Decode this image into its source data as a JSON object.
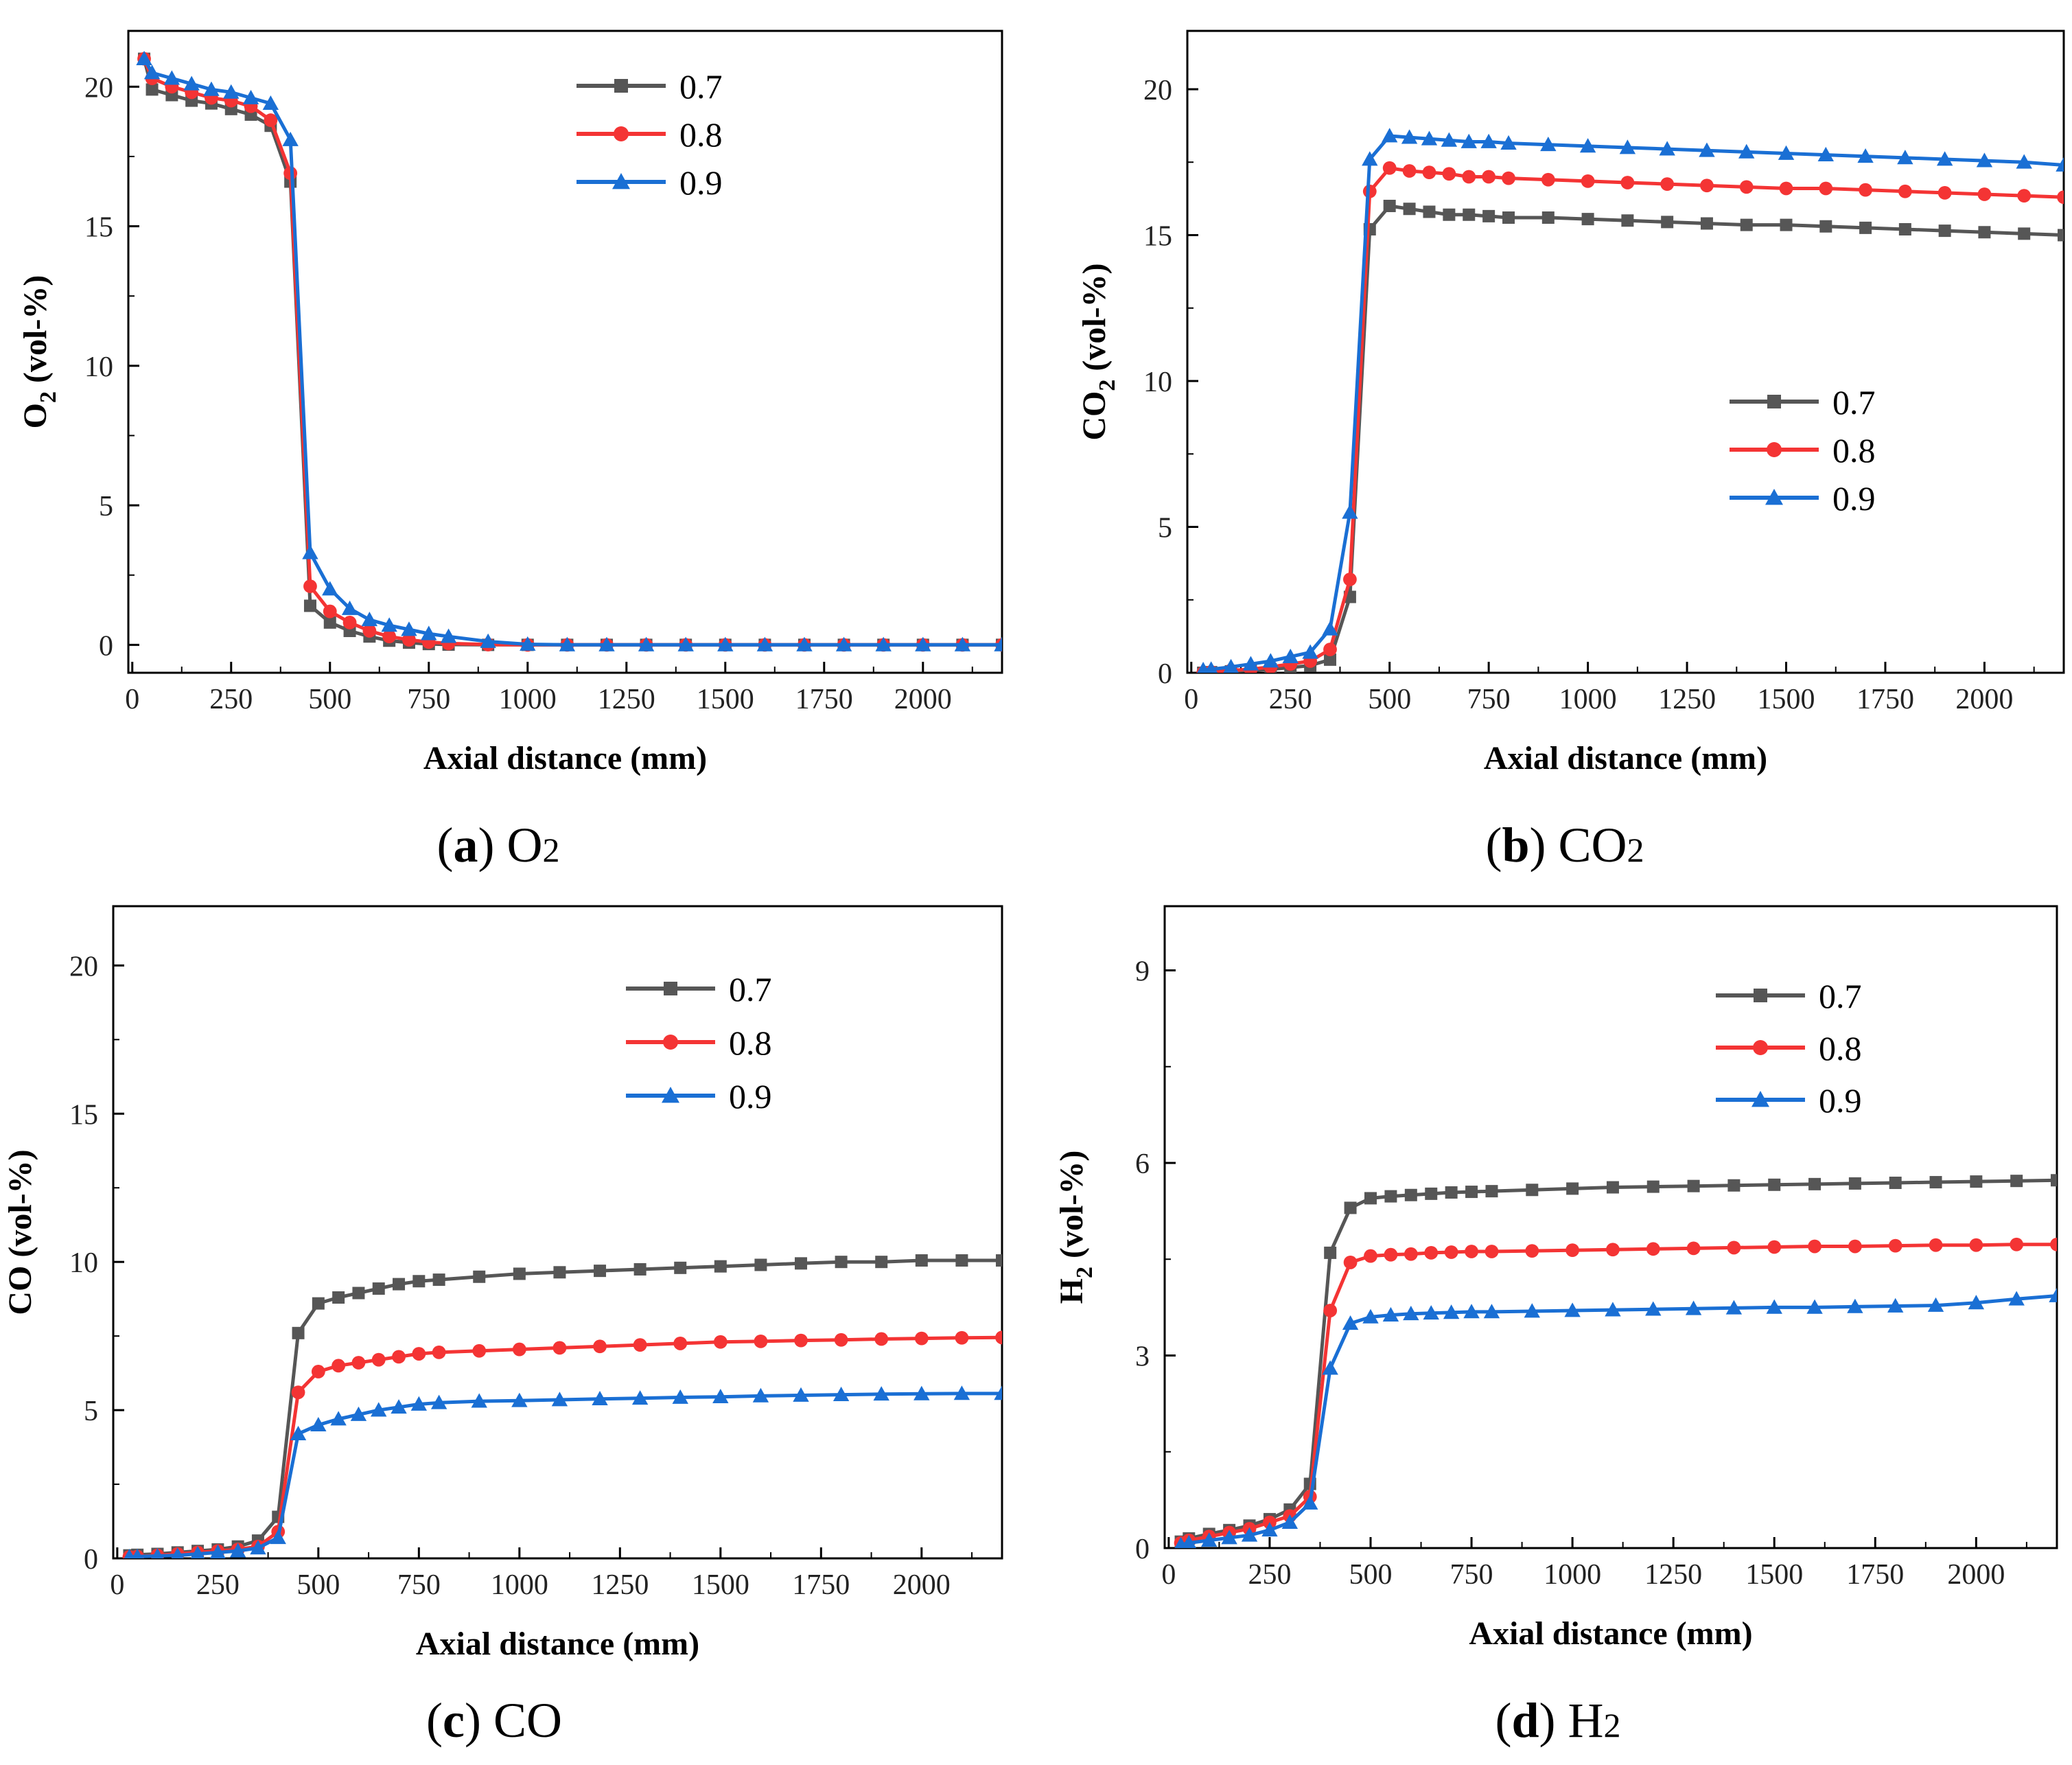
{
  "figure_title": "",
  "colors": {
    "s07": "#565656",
    "s08": "#f43434",
    "s09": "#1a6fd4",
    "axis": "#000000"
  },
  "chart_data": [
    {
      "id": "a",
      "type": "line",
      "caption": {
        "letter": "a",
        "open": "(",
        "close": ")",
        "text": "O",
        "sub": "2"
      },
      "xlabel": "Axial distance (mm)",
      "ylabel": {
        "main": "O",
        "sub": "2",
        "rest": " (vol-%)"
      },
      "xlim": [
        -10,
        2200
      ],
      "ylim": [
        -1,
        22
      ],
      "xticks": [
        0,
        250,
        500,
        750,
        1000,
        1250,
        1500,
        1750,
        2000
      ],
      "yticks": [
        0,
        5,
        10,
        15,
        20
      ],
      "legend": {
        "position": "top-right"
      },
      "series": [
        {
          "name": "0.7",
          "marker": "square",
          "color": "#565656",
          "x": [
            30,
            50,
            100,
            150,
            200,
            250,
            300,
            350,
            400,
            450,
            500,
            550,
            600,
            650,
            700,
            750,
            800,
            900,
            1000,
            1100,
            1200,
            1300,
            1400,
            1500,
            1600,
            1700,
            1800,
            1900,
            2000,
            2100,
            2200
          ],
          "y": [
            21.0,
            19.9,
            19.7,
            19.5,
            19.4,
            19.2,
            19.0,
            18.6,
            16.6,
            1.4,
            0.8,
            0.5,
            0.3,
            0.15,
            0.08,
            0.03,
            0.01,
            0,
            0,
            0,
            0,
            0,
            0,
            0,
            0,
            0,
            0,
            0,
            0,
            0,
            0
          ]
        },
        {
          "name": "0.8",
          "marker": "circle",
          "color": "#f43434",
          "x": [
            30,
            50,
            100,
            150,
            200,
            250,
            300,
            350,
            400,
            450,
            500,
            550,
            600,
            650,
            700,
            750,
            800,
            900,
            1000,
            1100,
            1200,
            1300,
            1400,
            1500,
            1600,
            1700,
            1800,
            1900,
            2000,
            2100,
            2200
          ],
          "y": [
            21.0,
            20.3,
            20.0,
            19.8,
            19.6,
            19.5,
            19.3,
            18.8,
            16.9,
            2.1,
            1.2,
            0.8,
            0.5,
            0.3,
            0.18,
            0.1,
            0.05,
            0.01,
            0,
            0,
            0,
            0,
            0,
            0,
            0,
            0,
            0,
            0,
            0,
            0,
            0
          ]
        },
        {
          "name": "0.9",
          "marker": "triangle",
          "color": "#1a6fd4",
          "x": [
            30,
            50,
            100,
            150,
            200,
            250,
            300,
            350,
            400,
            450,
            500,
            550,
            600,
            650,
            700,
            750,
            800,
            900,
            1000,
            1100,
            1200,
            1300,
            1400,
            1500,
            1600,
            1700,
            1800,
            1900,
            2000,
            2100,
            2200
          ],
          "y": [
            21.0,
            20.5,
            20.3,
            20.1,
            19.9,
            19.8,
            19.6,
            19.4,
            18.1,
            3.3,
            2.0,
            1.3,
            0.9,
            0.7,
            0.55,
            0.4,
            0.3,
            0.12,
            0.02,
            0,
            0,
            0,
            0,
            0,
            0,
            0,
            0,
            0,
            0,
            0,
            0
          ]
        }
      ]
    },
    {
      "id": "b",
      "type": "line",
      "caption": {
        "letter": "b",
        "open": "(",
        "close": ")",
        "text": "CO",
        "sub": "2"
      },
      "xlabel": "Axial distance (mm)",
      "ylabel": {
        "main": "CO",
        "sub": "2",
        "rest": " (vol-%)"
      },
      "xlim": [
        -10,
        2200
      ],
      "ylim": [
        0,
        22
      ],
      "xticks": [
        0,
        250,
        500,
        750,
        1000,
        1250,
        1500,
        1750,
        2000
      ],
      "yticks": [
        0,
        5,
        10,
        15,
        20
      ],
      "legend": {
        "position": "right"
      },
      "series": [
        {
          "name": "0.7",
          "marker": "square",
          "color": "#565656",
          "x": [
            30,
            50,
            100,
            150,
            200,
            250,
            300,
            350,
            400,
            450,
            500,
            550,
            600,
            650,
            700,
            750,
            800,
            900,
            1000,
            1100,
            1200,
            1300,
            1400,
            1500,
            1600,
            1700,
            1800,
            1900,
            2000,
            2100,
            2200
          ],
          "y": [
            0,
            0.02,
            0.05,
            0.08,
            0.12,
            0.18,
            0.25,
            0.45,
            2.6,
            15.2,
            16.0,
            15.9,
            15.8,
            15.7,
            15.7,
            15.65,
            15.6,
            15.6,
            15.55,
            15.5,
            15.45,
            15.4,
            15.35,
            15.35,
            15.3,
            15.25,
            15.2,
            15.15,
            15.1,
            15.05,
            15.0
          ]
        },
        {
          "name": "0.8",
          "marker": "circle",
          "color": "#f43434",
          "x": [
            30,
            50,
            100,
            150,
            200,
            250,
            300,
            350,
            400,
            450,
            500,
            550,
            600,
            650,
            700,
            750,
            800,
            900,
            1000,
            1100,
            1200,
            1300,
            1400,
            1500,
            1600,
            1700,
            1800,
            1900,
            2000,
            2100,
            2200
          ],
          "y": [
            0,
            0.03,
            0.08,
            0.12,
            0.2,
            0.3,
            0.4,
            0.8,
            3.2,
            16.5,
            17.3,
            17.2,
            17.15,
            17.1,
            17.0,
            17.0,
            16.95,
            16.9,
            16.85,
            16.8,
            16.75,
            16.7,
            16.65,
            16.6,
            16.6,
            16.55,
            16.5,
            16.45,
            16.4,
            16.35,
            16.3
          ]
        },
        {
          "name": "0.9",
          "marker": "triangle",
          "color": "#1a6fd4",
          "x": [
            30,
            50,
            100,
            150,
            200,
            250,
            300,
            350,
            400,
            450,
            500,
            550,
            600,
            650,
            700,
            750,
            800,
            900,
            1000,
            1100,
            1200,
            1300,
            1400,
            1500,
            1600,
            1700,
            1800,
            1900,
            2000,
            2100,
            2200
          ],
          "y": [
            0.1,
            0.12,
            0.2,
            0.3,
            0.4,
            0.55,
            0.7,
            1.5,
            5.5,
            17.6,
            18.4,
            18.35,
            18.3,
            18.25,
            18.2,
            18.2,
            18.15,
            18.1,
            18.05,
            18.0,
            17.95,
            17.9,
            17.85,
            17.8,
            17.75,
            17.7,
            17.65,
            17.6,
            17.55,
            17.5,
            17.4
          ]
        }
      ]
    },
    {
      "id": "c",
      "type": "line",
      "caption": {
        "letter": "c",
        "open": "(",
        "close": ")",
        "text": "CO",
        "sub": ""
      },
      "xlabel": "Axial distance (mm)",
      "ylabel": {
        "main": "CO",
        "sub": "",
        "rest": " (vol-%)"
      },
      "xlim": [
        -10,
        2200
      ],
      "ylim": [
        0,
        22
      ],
      "xticks": [
        0,
        250,
        500,
        750,
        1000,
        1250,
        1500,
        1750,
        2000
      ],
      "yticks": [
        0,
        5,
        10,
        15,
        20
      ],
      "legend": {
        "position": "top-right"
      },
      "series": [
        {
          "name": "0.7",
          "marker": "square",
          "color": "#565656",
          "x": [
            30,
            50,
            100,
            150,
            200,
            250,
            300,
            350,
            400,
            450,
            500,
            550,
            600,
            650,
            700,
            750,
            800,
            900,
            1000,
            1100,
            1200,
            1300,
            1400,
            1500,
            1600,
            1700,
            1800,
            1900,
            2000,
            2100,
            2200
          ],
          "y": [
            0.1,
            0.12,
            0.15,
            0.2,
            0.25,
            0.3,
            0.4,
            0.6,
            1.4,
            7.6,
            8.6,
            8.8,
            8.95,
            9.1,
            9.25,
            9.35,
            9.4,
            9.5,
            9.6,
            9.65,
            9.7,
            9.75,
            9.8,
            9.85,
            9.9,
            9.95,
            10.0,
            10.0,
            10.05,
            10.05,
            10.05
          ]
        },
        {
          "name": "0.8",
          "marker": "circle",
          "color": "#f43434",
          "x": [
            30,
            50,
            100,
            150,
            200,
            250,
            300,
            350,
            400,
            450,
            500,
            550,
            600,
            650,
            700,
            750,
            800,
            900,
            1000,
            1100,
            1200,
            1300,
            1400,
            1500,
            1600,
            1700,
            1800,
            1900,
            2000,
            2100,
            2200
          ],
          "y": [
            0.05,
            0.06,
            0.1,
            0.15,
            0.2,
            0.25,
            0.3,
            0.4,
            0.9,
            5.6,
            6.3,
            6.5,
            6.6,
            6.7,
            6.8,
            6.9,
            6.95,
            7.0,
            7.05,
            7.1,
            7.15,
            7.2,
            7.25,
            7.3,
            7.32,
            7.35,
            7.37,
            7.4,
            7.42,
            7.44,
            7.45
          ]
        },
        {
          "name": "0.9",
          "marker": "triangle",
          "color": "#1a6fd4",
          "x": [
            30,
            50,
            100,
            150,
            200,
            250,
            300,
            350,
            400,
            450,
            500,
            550,
            600,
            650,
            700,
            750,
            800,
            900,
            1000,
            1100,
            1200,
            1300,
            1400,
            1500,
            1600,
            1700,
            1800,
            1900,
            2000,
            2100,
            2200
          ],
          "y": [
            0.05,
            0.06,
            0.08,
            0.1,
            0.15,
            0.2,
            0.25,
            0.35,
            0.7,
            4.2,
            4.5,
            4.7,
            4.85,
            5.0,
            5.1,
            5.2,
            5.25,
            5.3,
            5.32,
            5.35,
            5.38,
            5.4,
            5.43,
            5.45,
            5.48,
            5.5,
            5.52,
            5.54,
            5.55,
            5.56,
            5.56
          ]
        }
      ]
    },
    {
      "id": "d",
      "type": "line",
      "caption": {
        "letter": "d",
        "open": "(",
        "close": ")",
        "text": "H",
        "sub": "2"
      },
      "xlabel": "Axial distance (mm)",
      "ylabel": {
        "main": "H",
        "sub": "2",
        "rest": " (vol-%)"
      },
      "xlim": [
        -10,
        2200
      ],
      "ylim": [
        0,
        10
      ],
      "xticks": [
        0,
        250,
        500,
        750,
        1000,
        1250,
        1500,
        1750,
        2000
      ],
      "yticks": [
        0,
        3,
        6,
        9
      ],
      "legend": {
        "position": "top-right"
      },
      "series": [
        {
          "name": "0.7",
          "marker": "square",
          "color": "#565656",
          "x": [
            30,
            50,
            100,
            150,
            200,
            250,
            300,
            350,
            400,
            450,
            500,
            550,
            600,
            650,
            700,
            750,
            800,
            900,
            1000,
            1100,
            1200,
            1300,
            1400,
            1500,
            1600,
            1700,
            1800,
            1900,
            2000,
            2100,
            2200
          ],
          "y": [
            0.1,
            0.15,
            0.22,
            0.28,
            0.35,
            0.45,
            0.6,
            1.0,
            4.6,
            5.3,
            5.45,
            5.48,
            5.5,
            5.52,
            5.54,
            5.55,
            5.56,
            5.58,
            5.6,
            5.62,
            5.63,
            5.64,
            5.65,
            5.66,
            5.67,
            5.68,
            5.69,
            5.7,
            5.71,
            5.72,
            5.73
          ]
        },
        {
          "name": "0.8",
          "marker": "circle",
          "color": "#f43434",
          "x": [
            30,
            50,
            100,
            150,
            200,
            250,
            300,
            350,
            400,
            450,
            500,
            550,
            600,
            650,
            700,
            750,
            800,
            900,
            1000,
            1100,
            1200,
            1300,
            1400,
            1500,
            1600,
            1700,
            1800,
            1900,
            2000,
            2100,
            2200
          ],
          "y": [
            0.08,
            0.12,
            0.18,
            0.24,
            0.3,
            0.4,
            0.5,
            0.8,
            3.7,
            4.45,
            4.55,
            4.57,
            4.58,
            4.6,
            4.61,
            4.62,
            4.62,
            4.63,
            4.64,
            4.65,
            4.66,
            4.67,
            4.68,
            4.69,
            4.7,
            4.7,
            4.71,
            4.72,
            4.72,
            4.73,
            4.73
          ]
        },
        {
          "name": "0.9",
          "marker": "triangle",
          "color": "#1a6fd4",
          "x": [
            30,
            50,
            100,
            150,
            200,
            250,
            300,
            350,
            400,
            450,
            500,
            550,
            600,
            650,
            700,
            750,
            800,
            900,
            1000,
            1100,
            1200,
            1300,
            1400,
            1500,
            1600,
            1700,
            1800,
            1900,
            2000,
            2100,
            2200
          ],
          "y": [
            0.05,
            0.08,
            0.12,
            0.16,
            0.2,
            0.28,
            0.4,
            0.7,
            2.8,
            3.5,
            3.6,
            3.63,
            3.65,
            3.66,
            3.67,
            3.68,
            3.68,
            3.69,
            3.7,
            3.71,
            3.72,
            3.73,
            3.74,
            3.75,
            3.75,
            3.76,
            3.77,
            3.78,
            3.82,
            3.88,
            3.93
          ]
        }
      ]
    }
  ]
}
